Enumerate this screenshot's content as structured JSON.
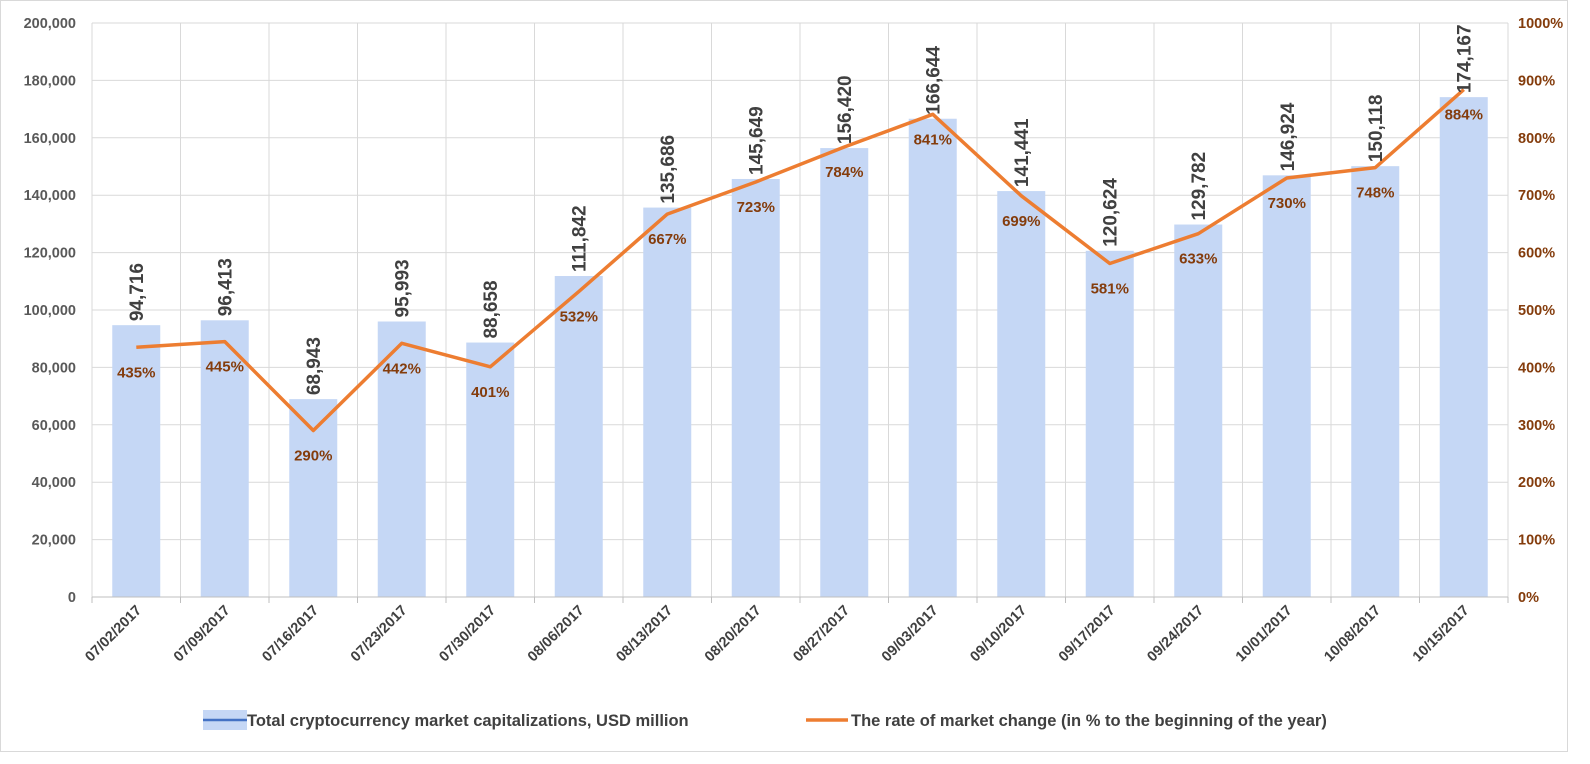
{
  "chart_data": {
    "type": "bar",
    "categories": [
      "07/02/2017",
      "07/09/2017",
      "07/16/2017",
      "07/23/2017",
      "07/30/2017",
      "08/06/2017",
      "08/13/2017",
      "08/20/2017",
      "08/27/2017",
      "09/03/2017",
      "09/10/2017",
      "09/17/2017",
      "09/24/2017",
      "10/01/2017",
      "10/08/2017",
      "10/15/2017"
    ],
    "series": [
      {
        "name": "Total cryptocurrency market capitalizations, USD million",
        "type": "bar",
        "axis": "left",
        "color": "#c5d7f5",
        "values": [
          94716,
          96413,
          68943,
          95993,
          88658,
          111842,
          135686,
          145649,
          156420,
          166644,
          141441,
          120624,
          129782,
          146924,
          150118,
          174167
        ],
        "labels": [
          "94,716",
          "96,413",
          "68,943",
          "95,993",
          "88,658",
          "111,842",
          "135,686",
          "145,649",
          "156,420",
          "166,644",
          "141,441",
          "120,624",
          "129,782",
          "146,924",
          "150,118",
          "174,167"
        ]
      },
      {
        "name": "The rate of market change (in % to the beginning of the year)",
        "type": "line",
        "axis": "right",
        "color": "#ed7d31",
        "values": [
          435,
          445,
          290,
          442,
          401,
          532,
          667,
          723,
          784,
          841,
          699,
          581,
          633,
          730,
          748,
          884
        ],
        "labels": [
          "435%",
          "445%",
          "290%",
          "442%",
          "401%",
          "532%",
          "667%",
          "723%",
          "784%",
          "841%",
          "699%",
          "581%",
          "633%",
          "730%",
          "748%",
          "884%"
        ]
      }
    ],
    "y_left": {
      "ylim": [
        0,
        200000
      ],
      "ticks": [
        0,
        20000,
        40000,
        60000,
        80000,
        100000,
        120000,
        140000,
        160000,
        180000,
        200000
      ],
      "tick_labels": [
        "0",
        "20,000",
        "40,000",
        "60,000",
        "80,000",
        "100,000",
        "120,000",
        "140,000",
        "160,000",
        "180,000",
        "200,000"
      ]
    },
    "y_right": {
      "ylim": [
        0,
        1000
      ],
      "ticks": [
        0,
        100,
        200,
        300,
        400,
        500,
        600,
        700,
        800,
        900,
        1000
      ],
      "tick_labels": [
        "0%",
        "100%",
        "200%",
        "300%",
        "400%",
        "500%",
        "600%",
        "700%",
        "800%",
        "900%",
        "1000%"
      ]
    },
    "grid": true,
    "legend_position": "bottom",
    "title": "",
    "xlabel": "",
    "ylabel": ""
  }
}
